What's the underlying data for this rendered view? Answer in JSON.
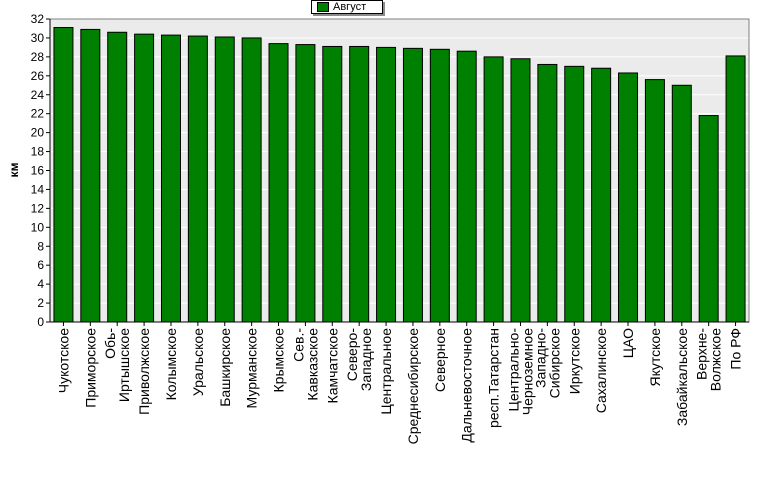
{
  "chart_data": {
    "type": "bar",
    "title": "",
    "xlabel": "",
    "ylabel": "км",
    "ylim": [
      0,
      32
    ],
    "yticks": [
      0,
      2,
      4,
      6,
      8,
      10,
      12,
      14,
      16,
      18,
      20,
      22,
      24,
      26,
      28,
      30,
      32
    ],
    "grid": true,
    "legend_position": "top-center",
    "categories": [
      "Чукотское",
      "Приморское",
      "Обь-Иртышское",
      "Приволжское",
      "Колымское",
      "Уральское",
      "Башкирское",
      "Мурманское",
      "Крымское",
      "Сев.-Кавказское",
      "Камчатское",
      "Северо-Западное",
      "Центральное",
      "Среднесибирское",
      "Северное",
      "Дальневосточное",
      "респ.Татарстан",
      "Центрально-Черноземное",
      "Западно-Сибирское",
      "Иркутское",
      "Сахалинское",
      "ЦАО",
      "Якутское",
      "Забайкальское",
      "Верхне-Волжское",
      "По РФ"
    ],
    "category_lines": [
      [
        "Чукотское"
      ],
      [
        "Приморское"
      ],
      [
        "Обь-",
        "Иртышское"
      ],
      [
        "Приволжское"
      ],
      [
        "Колымское"
      ],
      [
        "Уральское"
      ],
      [
        "Башкирское"
      ],
      [
        "Мурманское"
      ],
      [
        "Крымское"
      ],
      [
        "Сев.-",
        "Кавказское"
      ],
      [
        "Камчатское"
      ],
      [
        "Северо-",
        "Западное"
      ],
      [
        "Центральное"
      ],
      [
        "Среднесибирское"
      ],
      [
        "Северное"
      ],
      [
        "Дальневосточное"
      ],
      [
        "респ.Татарстан"
      ],
      [
        "Центрально-",
        "Черноземное"
      ],
      [
        "Западно-",
        "Сибирское"
      ],
      [
        "Иркутское"
      ],
      [
        "Сахалинское"
      ],
      [
        "ЦАО"
      ],
      [
        "Якутское"
      ],
      [
        "Забайкальское"
      ],
      [
        "Верхне-",
        "Волжское"
      ],
      [
        "По РФ"
      ]
    ],
    "series": [
      {
        "name": "Август",
        "color": "#008000",
        "values": [
          31.1,
          30.9,
          30.6,
          30.4,
          30.3,
          30.2,
          30.1,
          30.0,
          29.4,
          29.3,
          29.1,
          29.1,
          29.0,
          28.9,
          28.8,
          28.6,
          28.0,
          27.8,
          27.2,
          27.0,
          26.8,
          26.3,
          25.6,
          25.0,
          21.8,
          28.1
        ]
      }
    ],
    "colors": {
      "bar": "#008000",
      "plot_background": "#ebebeb",
      "gridline": "#ffffff"
    }
  }
}
